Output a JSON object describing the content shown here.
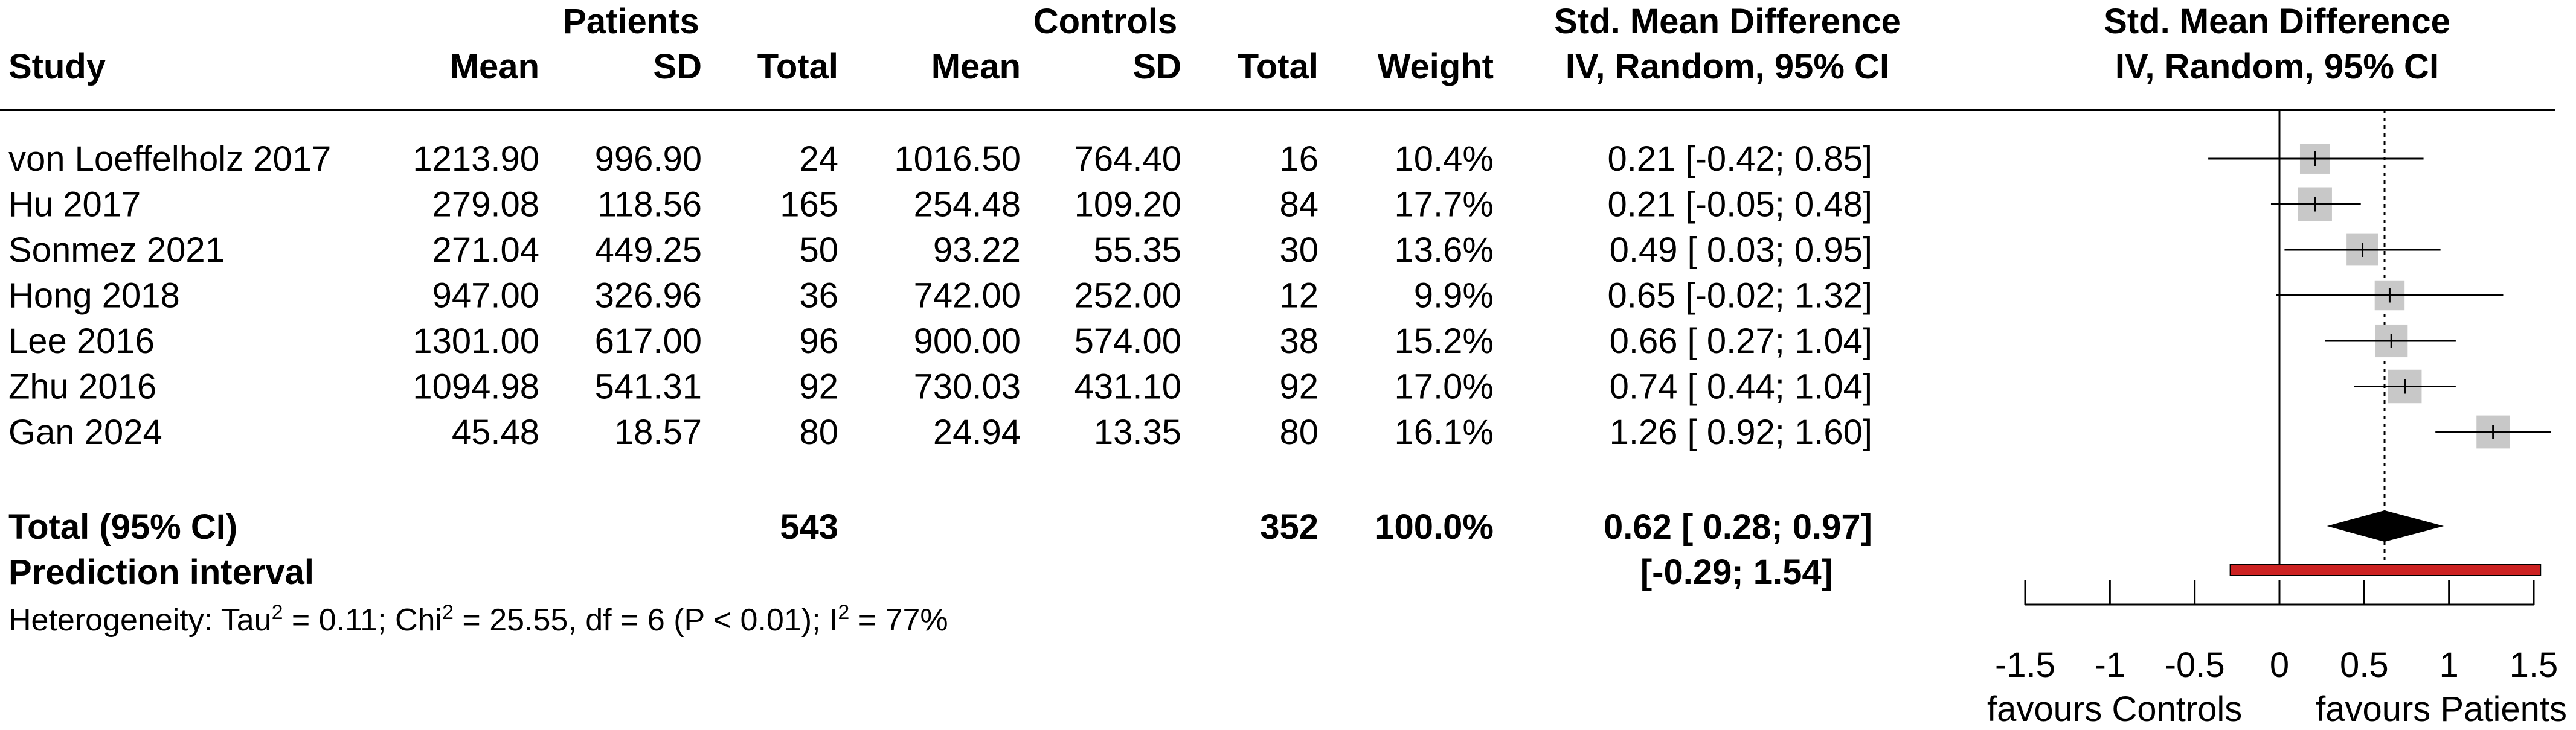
{
  "headers": {
    "patients": "Patients",
    "controls": "Controls",
    "smd_top": "Std. Mean Difference",
    "smd_sub": "IV, Random, 95% CI",
    "plot_top": "Std. Mean Difference",
    "plot_sub": "IV, Random, 95% CI",
    "study": "Study",
    "mean_p": "Mean",
    "sd_p": "SD",
    "total_p": "Total",
    "mean_c": "Mean",
    "sd_c": "SD",
    "total_c": "Total",
    "weight": "Weight"
  },
  "studies": [
    {
      "study": "von Loeffelholz 2017",
      "mean_p": "1213.90",
      "sd_p": "996.90",
      "total_p": "24",
      "mean_c": "1016.50",
      "sd_c": "764.40",
      "total_c": "16",
      "weight": "10.4%",
      "ci": "0.21 [-0.42; 0.85]"
    },
    {
      "study": "Hu 2017",
      "mean_p": "279.08",
      "sd_p": "118.56",
      "total_p": "165",
      "mean_c": "254.48",
      "sd_c": "109.20",
      "total_c": "84",
      "weight": "17.7%",
      "ci": "0.21 [-0.05; 0.48]"
    },
    {
      "study": "Sonmez 2021",
      "mean_p": "271.04",
      "sd_p": "449.25",
      "total_p": "50",
      "mean_c": "93.22",
      "sd_c": "55.35",
      "total_c": "30",
      "weight": "13.6%",
      "ci": "0.49 [ 0.03; 0.95]"
    },
    {
      "study": "Hong 2018",
      "mean_p": "947.00",
      "sd_p": "326.96",
      "total_p": "36",
      "mean_c": "742.00",
      "sd_c": "252.00",
      "total_c": "12",
      "weight": "9.9%",
      "ci": "0.65 [-0.02; 1.32]"
    },
    {
      "study": "Lee 2016",
      "mean_p": "1301.00",
      "sd_p": "617.00",
      "total_p": "96",
      "mean_c": "900.00",
      "sd_c": "574.00",
      "total_c": "38",
      "weight": "15.2%",
      "ci": "0.66 [ 0.27; 1.04]"
    },
    {
      "study": "Zhu 2016",
      "mean_p": "1094.98",
      "sd_p": "541.31",
      "total_p": "92",
      "mean_c": "730.03",
      "sd_c": "431.10",
      "total_c": "92",
      "weight": "17.0%",
      "ci": "0.74 [ 0.44; 1.04]"
    },
    {
      "study": "Gan 2024",
      "mean_p": "45.48",
      "sd_p": "18.57",
      "total_p": "80",
      "mean_c": "24.94",
      "sd_c": "13.35",
      "total_c": "80",
      "weight": "16.1%",
      "ci": "1.26 [ 0.92; 1.60]"
    }
  ],
  "total": {
    "label": "Total (95% CI)",
    "total_p": "543",
    "total_c": "352",
    "weight": "100.0%",
    "ci": "0.62 [ 0.28; 0.97]"
  },
  "prediction": {
    "label": "Prediction interval",
    "ci": "[-0.29; 1.54]"
  },
  "heterogeneity": {
    "pre": "Heterogeneity: Tau",
    "sup1": "2",
    "mid": " = 0.11; Chi",
    "sup2": "2",
    "mid2": " = 25.55, df = 6 (P < 0.01); I",
    "sup3": "2",
    "post": " = 77%"
  },
  "axis": {
    "favours_left": "favours Controls",
    "favours_right": "favours Patients"
  },
  "chart_data": {
    "type": "forest",
    "xlim": [
      -1.5,
      1.5
    ],
    "ticks": [
      -1.5,
      -1,
      -0.5,
      0,
      0.5,
      1,
      1.5
    ],
    "tick_labels": [
      "-1.5",
      "-1",
      "-0.5",
      "0",
      "0.5",
      "1",
      "1.5"
    ],
    "null_line": 0,
    "summary_line": 0.62,
    "points": [
      {
        "study": "von Loeffelholz 2017",
        "est": 0.21,
        "lo": -0.42,
        "hi": 0.85,
        "weight": 10.4
      },
      {
        "study": "Hu 2017",
        "est": 0.21,
        "lo": -0.05,
        "hi": 0.48,
        "weight": 17.7
      },
      {
        "study": "Sonmez 2021",
        "est": 0.49,
        "lo": 0.03,
        "hi": 0.95,
        "weight": 13.6
      },
      {
        "study": "Hong 2018",
        "est": 0.65,
        "lo": -0.02,
        "hi": 1.32,
        "weight": 9.9
      },
      {
        "study": "Lee 2016",
        "est": 0.66,
        "lo": 0.27,
        "hi": 1.04,
        "weight": 15.2
      },
      {
        "study": "Zhu 2016",
        "est": 0.74,
        "lo": 0.44,
        "hi": 1.04,
        "weight": 17.0
      },
      {
        "study": "Gan 2024",
        "est": 1.26,
        "lo": 0.92,
        "hi": 1.6,
        "weight": 16.1
      }
    ],
    "summary": {
      "est": 0.62,
      "lo": 0.28,
      "hi": 0.97
    },
    "prediction_interval": {
      "lo": -0.29,
      "hi": 1.54
    },
    "colors": {
      "box": "#c8c8c8",
      "diamond": "#000000",
      "prediction": "#cc2222",
      "line": "#000000"
    }
  }
}
